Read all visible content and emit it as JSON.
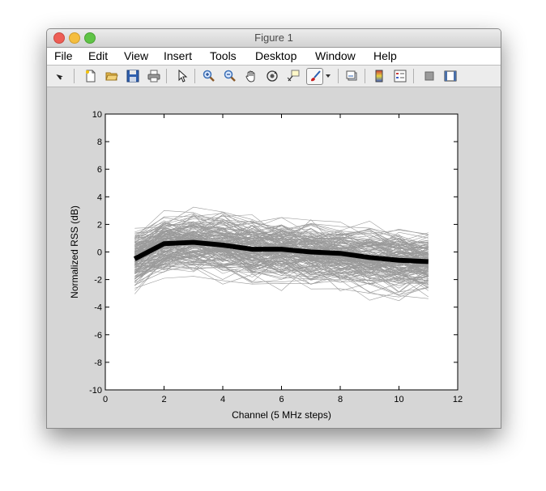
{
  "window": {
    "title": "Figure 1"
  },
  "menu": [
    "File",
    "Edit",
    "View",
    "Insert",
    "Tools",
    "Desktop",
    "Window",
    "Help"
  ],
  "toolbar": {
    "icons": [
      "pointer-arrow-icon",
      "new-figure-icon",
      "open-folder-icon",
      "save-disk-icon",
      "print-icon",
      "edit-plot-cursor-icon",
      "zoom-in-icon",
      "zoom-out-icon",
      "pan-hand-icon",
      "rotate-3d-icon",
      "data-cursor-icon",
      "brush-icon",
      "brush-dropdown-icon",
      "link-plot-icon",
      "colorbar-icon",
      "legend-icon",
      "hide-plot-tools-icon",
      "show-plot-tools-icon"
    ]
  },
  "chart_data": {
    "type": "line",
    "xlabel": "Channel (5 MHz steps)",
    "ylabel": "Normalized RSS (dB)",
    "xlim": [
      0,
      12
    ],
    "ylim": [
      -10,
      10
    ],
    "xticks": [
      "0",
      "2",
      "4",
      "6",
      "8",
      "10",
      "12"
    ],
    "yticks": [
      "10",
      "8",
      "6",
      "4",
      "2",
      "0",
      "-2",
      "-4",
      "-6",
      "-8",
      "-10"
    ],
    "grid": false,
    "x": [
      1,
      2,
      3,
      4,
      5,
      6,
      7,
      8,
      9,
      10,
      11
    ],
    "series": [
      {
        "values": [
          -0.5,
          0.6,
          0.7,
          0.5,
          0.2,
          0.2,
          0.0,
          -0.1,
          -0.4,
          -0.6,
          -0.7
        ],
        "color": "#000000"
      }
    ],
    "trace_band": {
      "color": "#9a9a9a",
      "count": 170,
      "upper": [
        2.8,
        3.0,
        3.3,
        2.9,
        2.7,
        2.5,
        2.5,
        2.5,
        2.3,
        2.3,
        2.5
      ],
      "lower": [
        -4.0,
        -2.5,
        -2.3,
        -2.9,
        -3.2,
        -3.8,
        -3.4,
        -3.3,
        -3.5,
        -3.7,
        -4.1
      ]
    }
  }
}
